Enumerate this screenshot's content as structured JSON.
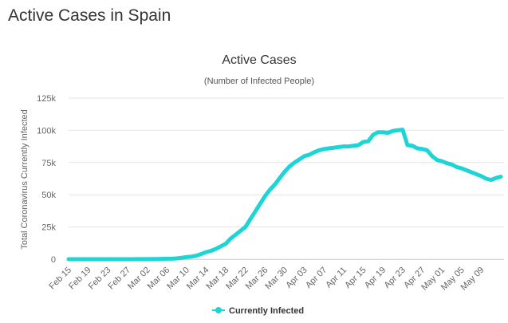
{
  "page_title": "Active Cases in Spain",
  "chart_data": {
    "type": "line",
    "title": "Active Cases",
    "subtitle": "(Number of Infected People)",
    "y_label": "Total Coronavirus Currently Infected",
    "categories": [
      "Feb 15",
      null,
      null,
      null,
      "Feb 19",
      null,
      null,
      null,
      "Feb 23",
      null,
      null,
      null,
      "Feb 27",
      null,
      null,
      null,
      "Mar 02",
      null,
      null,
      null,
      "Mar 06",
      null,
      null,
      null,
      "Mar 10",
      null,
      null,
      null,
      "Mar 14",
      null,
      null,
      null,
      "Mar 18",
      null,
      null,
      null,
      "Mar 22",
      null,
      null,
      null,
      "Mar 26",
      null,
      null,
      null,
      "Mar 30",
      null,
      null,
      null,
      "Apr 03",
      null,
      null,
      null,
      "Apr 07",
      null,
      null,
      null,
      "Apr 11",
      null,
      null,
      null,
      "Apr 15",
      null,
      null,
      null,
      "Apr 19",
      null,
      null,
      null,
      "Apr 23",
      null,
      null,
      null,
      "Apr 27",
      null,
      null,
      null,
      "May 01",
      null,
      null,
      null,
      "May 05",
      null,
      null,
      null,
      "May 09",
      null,
      null,
      null,
      null
    ],
    "series": [
      {
        "name": "Currently Infected",
        "color": "#1fd4d4",
        "values": [
          2,
          2,
          2,
          2,
          2,
          2,
          2,
          2,
          2,
          3,
          5,
          11,
          13,
          23,
          43,
          80,
          112,
          146,
          185,
          245,
          365,
          400,
          630,
          1100,
          1600,
          2000,
          2700,
          4000,
          5500,
          6500,
          8000,
          10000,
          12000,
          16000,
          19000,
          22000,
          25000,
          31000,
          37000,
          43000,
          49000,
          54000,
          58000,
          63000,
          68000,
          72000,
          75000,
          77500,
          80000,
          81000,
          83000,
          84500,
          85500,
          86000,
          86500,
          87000,
          87500,
          87500,
          88000,
          88500,
          91000,
          91500,
          96500,
          98500,
          98500,
          98000,
          99500,
          100000,
          100500,
          88500,
          88000,
          86000,
          85500,
          84500,
          80000,
          77000,
          76000,
          74500,
          73500,
          71500,
          70500,
          69000,
          67500,
          66000,
          64500,
          62500,
          61500,
          63000,
          64000
        ]
      }
    ],
    "ylim": [
      0,
      125000
    ],
    "yticks": [
      0,
      {
        "value": 25000,
        "label": "25k"
      },
      {
        "value": 50000,
        "label": "50k"
      },
      {
        "value": 75000,
        "label": "75k"
      },
      {
        "value": 100000,
        "label": "100k"
      },
      {
        "value": 125000,
        "label": "125k"
      }
    ],
    "grid": true,
    "legend": "bottom"
  }
}
